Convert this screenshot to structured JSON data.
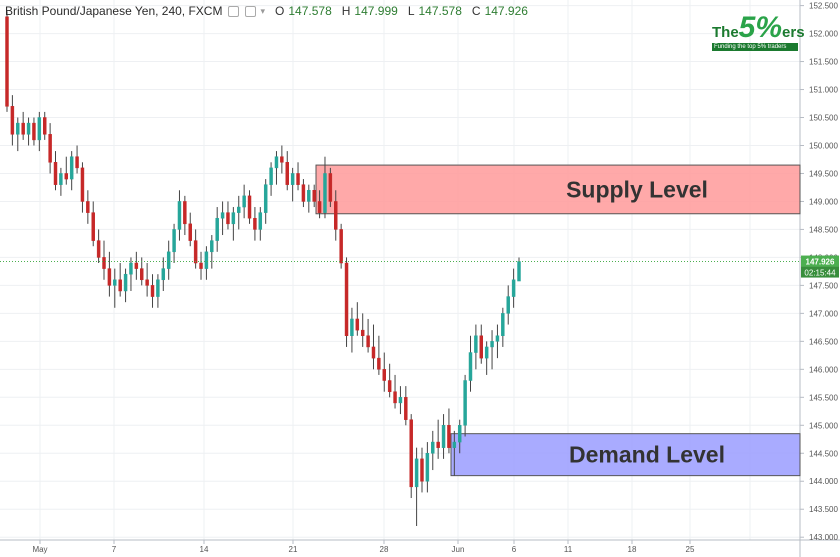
{
  "header": {
    "symbol": "British Pound/Japanese Yen, 240, FXCM",
    "open_label": "O",
    "open": "147.578",
    "high_label": "H",
    "high": "147.999",
    "low_label": "L",
    "low": "147.578",
    "close_label": "C",
    "close": "147.926"
  },
  "logo": {
    "the": "The",
    "five": "5%",
    "ers": "ers",
    "tagline": "Funding the top 5% traders"
  },
  "chart_data": {
    "type": "candlestick",
    "ylim": [
      142.95,
      152.6
    ],
    "y_ticks": [
      "152.500",
      "152.000",
      "151.500",
      "151.000",
      "150.500",
      "150.000",
      "149.500",
      "149.000",
      "148.500",
      "148.000",
      "147.500",
      "147.000",
      "146.500",
      "146.000",
      "145.500",
      "145.000",
      "144.500",
      "144.000",
      "143.500",
      "143.000"
    ],
    "x_ticks": [
      "May",
      "7",
      "14",
      "21",
      "28",
      "Jun",
      "6",
      "11",
      "18",
      "25"
    ],
    "last_price": "147.926",
    "countdown": "02:15:44",
    "zones": [
      {
        "label": "Supply Level",
        "top": 149.65,
        "bottom": 148.78,
        "fill": "#ff9a9a",
        "stroke": "#555555"
      },
      {
        "label": "Demand Level",
        "top": 144.85,
        "bottom": 144.1,
        "fill": "#9a9cff",
        "stroke": "#555555"
      }
    ],
    "colors": {
      "up": "#26a69a",
      "down": "#c62828",
      "wick": "#444444",
      "last_price_bg": "#4caf50"
    },
    "candles": [
      [
        152.3,
        152.4,
        150.6,
        150.7
      ],
      [
        150.7,
        150.9,
        150.0,
        150.2
      ],
      [
        150.2,
        150.5,
        149.9,
        150.4
      ],
      [
        150.4,
        150.6,
        150.1,
        150.2
      ],
      [
        150.2,
        150.5,
        150.0,
        150.4
      ],
      [
        150.4,
        150.5,
        150.0,
        150.1
      ],
      [
        150.1,
        150.6,
        149.9,
        150.5
      ],
      [
        150.5,
        150.6,
        150.1,
        150.2
      ],
      [
        150.2,
        150.4,
        149.5,
        149.7
      ],
      [
        149.7,
        149.9,
        149.2,
        149.3
      ],
      [
        149.3,
        149.6,
        149.1,
        149.5
      ],
      [
        149.5,
        149.8,
        149.3,
        149.4
      ],
      [
        149.4,
        149.9,
        149.2,
        149.8
      ],
      [
        149.8,
        150.0,
        149.5,
        149.6
      ],
      [
        149.6,
        149.7,
        148.8,
        149.0
      ],
      [
        149.0,
        149.2,
        148.6,
        148.8
      ],
      [
        148.8,
        149.0,
        148.2,
        148.3
      ],
      [
        148.3,
        148.5,
        147.9,
        148.0
      ],
      [
        148.0,
        148.3,
        147.6,
        147.8
      ],
      [
        147.8,
        148.1,
        147.3,
        147.5
      ],
      [
        147.5,
        147.8,
        147.1,
        147.6
      ],
      [
        147.6,
        147.9,
        147.3,
        147.4
      ],
      [
        147.4,
        147.8,
        147.2,
        147.7
      ],
      [
        147.7,
        148.0,
        147.4,
        147.9
      ],
      [
        147.9,
        148.1,
        147.6,
        147.8
      ],
      [
        147.8,
        148.0,
        147.5,
        147.6
      ],
      [
        147.6,
        147.9,
        147.3,
        147.5
      ],
      [
        147.5,
        147.7,
        147.1,
        147.3
      ],
      [
        147.3,
        147.7,
        147.1,
        147.6
      ],
      [
        147.6,
        148.0,
        147.4,
        147.8
      ],
      [
        147.8,
        148.3,
        147.6,
        148.1
      ],
      [
        148.1,
        148.6,
        147.9,
        148.5
      ],
      [
        148.5,
        149.2,
        148.3,
        149.0
      ],
      [
        149.0,
        149.1,
        148.4,
        148.6
      ],
      [
        148.6,
        148.8,
        148.2,
        148.3
      ],
      [
        148.3,
        148.5,
        147.8,
        147.9
      ],
      [
        147.9,
        148.1,
        147.6,
        147.8
      ],
      [
        147.8,
        148.2,
        147.6,
        148.1
      ],
      [
        148.1,
        148.4,
        147.8,
        148.3
      ],
      [
        148.3,
        148.9,
        148.1,
        148.7
      ],
      [
        148.7,
        149.0,
        148.4,
        148.8
      ],
      [
        148.8,
        149.0,
        148.5,
        148.6
      ],
      [
        148.6,
        148.9,
        148.3,
        148.8
      ],
      [
        148.8,
        149.1,
        148.5,
        148.9
      ],
      [
        148.9,
        149.3,
        148.7,
        149.1
      ],
      [
        149.1,
        149.2,
        148.6,
        148.7
      ],
      [
        148.7,
        148.9,
        148.3,
        148.5
      ],
      [
        148.5,
        148.9,
        148.3,
        148.8
      ],
      [
        148.8,
        149.4,
        148.6,
        149.3
      ],
      [
        149.3,
        149.7,
        149.1,
        149.6
      ],
      [
        149.6,
        149.9,
        149.3,
        149.8
      ],
      [
        149.8,
        150.0,
        149.5,
        149.7
      ],
      [
        149.7,
        149.9,
        149.2,
        149.3
      ],
      [
        149.3,
        149.6,
        149.0,
        149.5
      ],
      [
        149.5,
        149.7,
        149.2,
        149.3
      ],
      [
        149.3,
        149.4,
        148.9,
        149.0
      ],
      [
        149.0,
        149.3,
        148.8,
        149.2
      ],
      [
        149.2,
        149.3,
        148.9,
        149.0
      ],
      [
        149.0,
        149.2,
        148.7,
        148.8
      ],
      [
        148.8,
        149.8,
        148.7,
        149.5
      ],
      [
        149.5,
        149.6,
        148.9,
        149.0
      ],
      [
        149.0,
        149.2,
        148.3,
        148.5
      ],
      [
        148.5,
        148.6,
        147.8,
        147.9
      ],
      [
        147.9,
        148.0,
        146.4,
        146.6
      ],
      [
        146.6,
        147.1,
        146.3,
        146.9
      ],
      [
        146.9,
        147.2,
        146.6,
        146.7
      ],
      [
        146.7,
        147.0,
        146.4,
        146.6
      ],
      [
        146.6,
        146.9,
        146.3,
        146.4
      ],
      [
        146.4,
        146.8,
        146.0,
        146.2
      ],
      [
        146.2,
        146.6,
        145.9,
        146.0
      ],
      [
        146.0,
        146.3,
        145.6,
        145.8
      ],
      [
        145.8,
        146.1,
        145.5,
        145.6
      ],
      [
        145.6,
        145.9,
        145.3,
        145.4
      ],
      [
        145.4,
        145.7,
        145.2,
        145.5
      ],
      [
        145.5,
        145.7,
        145.0,
        145.1
      ],
      [
        145.1,
        145.2,
        143.7,
        143.9
      ],
      [
        143.9,
        144.6,
        143.2,
        144.4
      ],
      [
        144.4,
        144.6,
        143.8,
        144.0
      ],
      [
        144.0,
        144.7,
        143.8,
        144.5
      ],
      [
        144.5,
        144.9,
        144.2,
        144.7
      ],
      [
        144.7,
        145.1,
        144.4,
        144.6
      ],
      [
        144.6,
        145.2,
        144.4,
        145.0
      ],
      [
        145.0,
        145.3,
        144.5,
        144.6
      ],
      [
        144.6,
        144.9,
        144.1,
        144.7
      ],
      [
        144.7,
        145.1,
        144.5,
        145.0
      ],
      [
        145.0,
        145.9,
        144.8,
        145.8
      ],
      [
        145.8,
        146.6,
        145.6,
        146.3
      ],
      [
        146.3,
        146.8,
        146.0,
        146.6
      ],
      [
        146.6,
        146.8,
        146.1,
        146.2
      ],
      [
        146.2,
        146.5,
        145.9,
        146.4
      ],
      [
        146.4,
        146.7,
        146.0,
        146.5
      ],
      [
        146.5,
        146.8,
        146.2,
        146.6
      ],
      [
        146.6,
        147.1,
        146.4,
        147.0
      ],
      [
        147.0,
        147.5,
        146.8,
        147.3
      ],
      [
        147.3,
        147.8,
        147.1,
        147.6
      ],
      [
        147.578,
        147.999,
        147.578,
        147.926
      ]
    ]
  }
}
